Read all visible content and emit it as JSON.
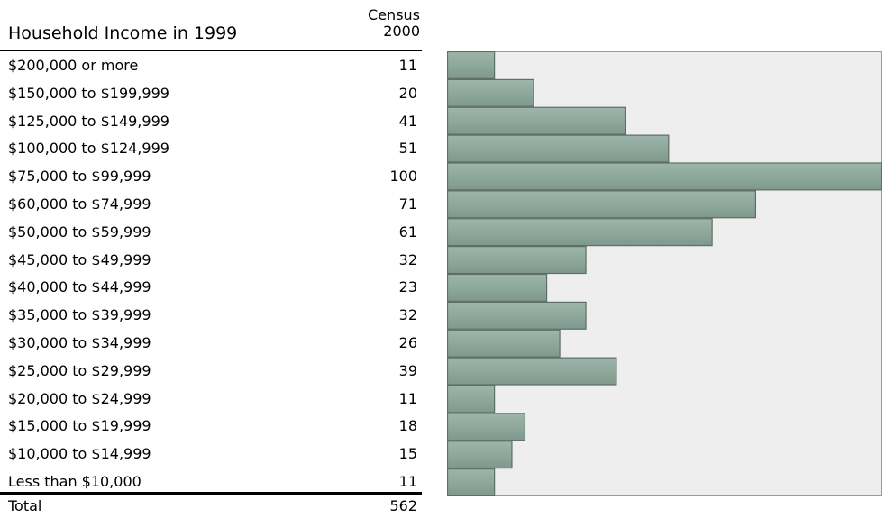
{
  "table": {
    "title": "Household Income in 1999",
    "column_header_line1": "Census",
    "column_header_line2": "2000",
    "total_label": "Total",
    "total_value": "562"
  },
  "colors": {
    "bar_fill": "#8ea89c",
    "bar_stroke": "#5e6e67",
    "plot_background": "#eeeeee",
    "plot_border": "#9a9a9a"
  },
  "chart_data": {
    "type": "bar",
    "orientation": "horizontal",
    "title": "",
    "xlabel": "",
    "ylabel": "",
    "xlim": [
      0,
      100
    ],
    "grid": false,
    "categories": [
      "$200,000 or more",
      "$150,000 to $199,999",
      "$125,000 to $149,999",
      "$100,000 to $124,999",
      "$75,000 to $99,999",
      "$60,000 to $74,999",
      "$50,000 to $59,999",
      "$45,000 to $49,999",
      "$40,000 to $44,999",
      "$35,000 to $39,999",
      "$30,000 to $34,999",
      "$25,000 to $29,999",
      "$20,000 to $24,999",
      "$15,000 to $19,999",
      "$10,000 to $14,999",
      "Less than $10,000"
    ],
    "values": [
      11,
      20,
      41,
      51,
      100,
      71,
      61,
      32,
      23,
      32,
      26,
      39,
      11,
      18,
      15,
      11
    ]
  }
}
